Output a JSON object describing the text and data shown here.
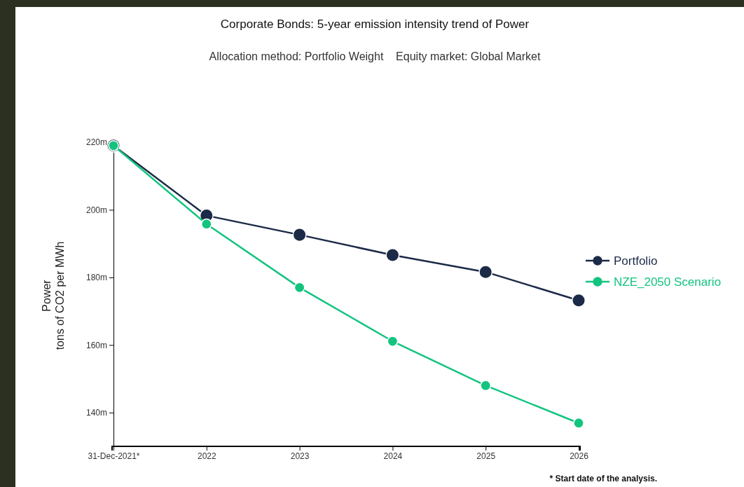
{
  "chart_data": {
    "type": "line",
    "title": "Corporate Bonds: 5-year emission intensity trend of Power",
    "subtitle": "Allocation method: Portfolio Weight    Equity market: Global Market",
    "ylabel": "Power\ntons of CO2 per MWh",
    "categories": [
      "31-Dec-2021*",
      "2022",
      "2023",
      "2024",
      "2025",
      "2026"
    ],
    "series": [
      {
        "name": "Portfolio",
        "color": "#1b2a47",
        "values": [
          219,
          198.3,
          192.6,
          186.6,
          181.6,
          173.2
        ]
      },
      {
        "name": "NZE_2050 Scenario",
        "color": "#13c47f",
        "values": [
          219,
          195.8,
          177.0,
          161.1,
          148.0,
          136.9
        ]
      }
    ],
    "ylim": [
      130,
      220
    ],
    "yticks": [
      {
        "value": 140,
        "label": "140m"
      },
      {
        "value": 160,
        "label": "160m"
      },
      {
        "value": 180,
        "label": "180m"
      },
      {
        "value": 200,
        "label": "200m"
      },
      {
        "value": 220,
        "label": "220m"
      }
    ],
    "grid": false,
    "legend": "right",
    "marker": "circle",
    "line_style": "solid",
    "annotations": [
      "* Start date of the analysis."
    ]
  }
}
